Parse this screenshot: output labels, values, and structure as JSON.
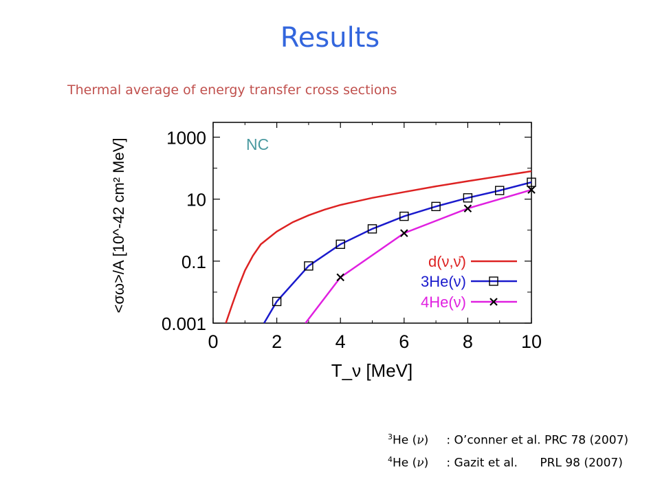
{
  "page": {
    "title": "Results",
    "subtitle": "Thermal average of energy transfer cross sections"
  },
  "chart_data": {
    "type": "line",
    "annotation": "NC",
    "xlabel": "T_ν [MeV]",
    "ylabel": "<σω>/A  [10^-42 cm² MeV]",
    "xlim": [
      0,
      10
    ],
    "ylim": [
      0.001,
      3000
    ],
    "yscale": "log",
    "x_ticks": [
      "0",
      "2",
      "4",
      "6",
      "8",
      "10"
    ],
    "y_ticks": [
      "0.001",
      "0.1",
      "10",
      "1000"
    ],
    "grid": false,
    "legend_position": "lower-right",
    "series": [
      {
        "name": "d(ν,ν̄)",
        "color": "#dd2222",
        "marker": "none",
        "x": [
          0.4,
          0.6,
          0.8,
          1.0,
          1.25,
          1.5,
          2.0,
          2.5,
          3.0,
          3.5,
          4.0,
          5.0,
          6.0,
          7.0,
          8.0,
          9.0,
          10.0
        ],
        "y": [
          0.001,
          0.004,
          0.015,
          0.05,
          0.15,
          0.35,
          0.9,
          1.8,
          3.0,
          4.6,
          6.5,
          11.0,
          17.0,
          26.0,
          38.0,
          55.0,
          80.0
        ]
      },
      {
        "name": "3He(ν)",
        "color": "#1a1acc",
        "marker": "square",
        "x": [
          1.6,
          2.0,
          3.0,
          4.0,
          5.0,
          6.0,
          7.0,
          8.0,
          9.0,
          10.0
        ],
        "y": [
          0.001,
          0.005,
          0.07,
          0.35,
          1.1,
          2.8,
          5.8,
          11.0,
          19.0,
          35.0
        ]
      },
      {
        "name": "4He(ν)",
        "color": "#e020e0",
        "marker": "cross",
        "x": [
          2.9,
          4.0,
          6.0,
          8.0,
          10.0
        ],
        "y": [
          0.001,
          0.03,
          0.8,
          5.0,
          20.0
        ]
      }
    ]
  },
  "references": [
    {
      "mass": "3",
      "label": "He (",
      "close": ")",
      "colon": ":",
      "text": "O’conner et al. PRC 78 (2007)"
    },
    {
      "mass": "4",
      "label": "He (",
      "close": ")",
      "colon": ":",
      "text": "Gazit et al.      PRL 98 (2007)"
    }
  ],
  "nu_symbol": "ν"
}
